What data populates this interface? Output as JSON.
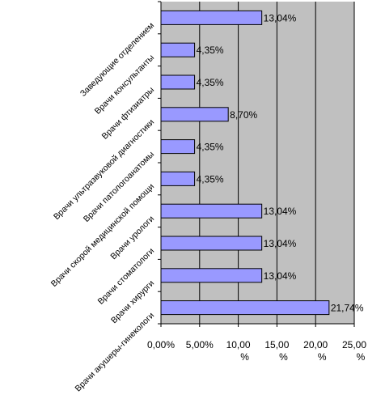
{
  "chart_data": {
    "type": "bar",
    "orientation": "horizontal",
    "categories": [
      "Заведующие отделением",
      "Врачи консультанты",
      "Врачи фтизиатры",
      "Врачи ультразвуковой диагностики",
      "Врачи патологоанатомы",
      "Врачи скорой медицинской помощи",
      "Врачи урологи",
      "Врачи стоматологи",
      "Врачи хирурги",
      "Врачи акушеры-гинекологи"
    ],
    "values": [
      13.04,
      4.35,
      4.35,
      8.7,
      4.35,
      4.35,
      13.04,
      13.04,
      13.04,
      21.74
    ],
    "data_labels": [
      "13,04%",
      "4,35%",
      "4,35%",
      "8,70%",
      "4,35%",
      "4,35%",
      "13,04%",
      "13,04%",
      "13,04%",
      "21,74%"
    ],
    "x_ticks": [
      0,
      5,
      10,
      15,
      20,
      25
    ],
    "x_tick_labels": [
      [
        "0,00%"
      ],
      [
        "5,00%"
      ],
      [
        "10,00",
        "%"
      ],
      [
        "15,00",
        "%"
      ],
      [
        "20,00",
        "%"
      ],
      [
        "25,00",
        "%"
      ]
    ],
    "xlim": [
      0,
      25
    ],
    "title": "",
    "xlabel": "",
    "ylabel": "",
    "grid": true,
    "colors": {
      "bar_fill": "#9999ff",
      "bar_stroke": "#000000",
      "plot_bg": "#c0c0c0",
      "gridline": "#000000"
    }
  }
}
